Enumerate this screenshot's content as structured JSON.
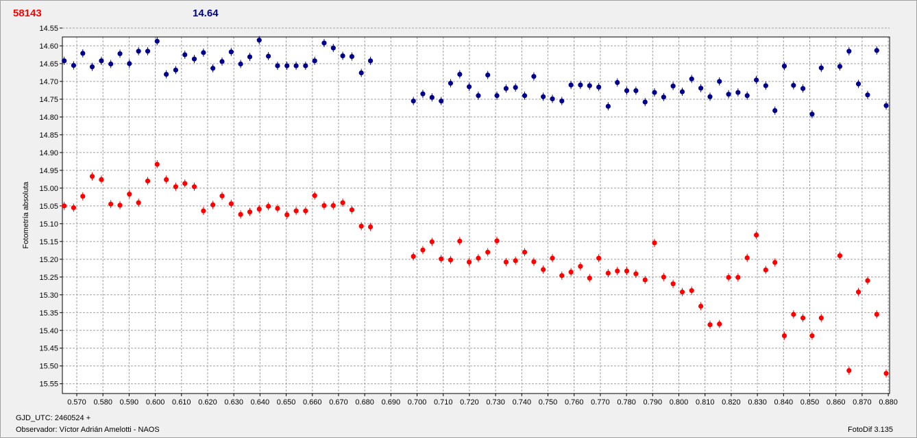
{
  "header": {
    "target_value": "58143",
    "target_color": "#ff0000",
    "compare_value": "14.64",
    "compare_color": "#00008b"
  },
  "footer": {
    "gjd_label": "GJD_UTC: 2460524 +",
    "observer_label": "Observador: Víctor Adrián Amelotti - NAOS",
    "software_label": "FotoDif 3.135"
  },
  "chart_data": {
    "type": "scatter",
    "ylabel": "Fotometría absoluta",
    "xlabel": "",
    "xlim": [
      0.5645,
      0.8805
    ],
    "ylim": [
      14.575,
      15.5775
    ],
    "y_inverted": true,
    "grid": true,
    "x_ticks": [
      0.57,
      0.58,
      0.59,
      0.6,
      0.61,
      0.62,
      0.63,
      0.64,
      0.65,
      0.66,
      0.67,
      0.68,
      0.69,
      0.7,
      0.71,
      0.72,
      0.73,
      0.74,
      0.75,
      0.76,
      0.77,
      0.78,
      0.79,
      0.8,
      0.81,
      0.82,
      0.83,
      0.84,
      0.85,
      0.86,
      0.87,
      0.88
    ],
    "y_ticks": [
      14.55,
      14.6,
      14.65,
      14.7,
      14.75,
      14.8,
      14.85,
      14.9,
      14.95,
      15.0,
      15.05,
      15.1,
      15.15,
      15.2,
      15.25,
      15.3,
      15.35,
      15.4,
      15.45,
      15.5,
      15.55
    ],
    "series": [
      {
        "color": "#00008b",
        "x": [
          0.5652,
          0.5688,
          0.5723,
          0.5759,
          0.5794,
          0.583,
          0.5865,
          0.5901,
          0.5936,
          0.5971,
          0.6007,
          0.6042,
          0.6078,
          0.6113,
          0.6149,
          0.6184,
          0.622,
          0.6255,
          0.629,
          0.6326,
          0.6361,
          0.6397,
          0.6432,
          0.6467,
          0.6503,
          0.6538,
          0.6574,
          0.6609,
          0.6645,
          0.668,
          0.6716,
          0.6751,
          0.6787,
          0.6822,
          0.6986,
          0.7022,
          0.7057,
          0.7092,
          0.7128,
          0.7163,
          0.7199,
          0.7234,
          0.727,
          0.7305,
          0.734,
          0.7376,
          0.7411,
          0.7446,
          0.7482,
          0.7517,
          0.7553,
          0.7588,
          0.7624,
          0.7659,
          0.7694,
          0.773,
          0.7765,
          0.7801,
          0.7836,
          0.7871,
          0.7907,
          0.7942,
          0.7978,
          0.8013,
          0.8049,
          0.8084,
          0.8119,
          0.8155,
          0.819,
          0.8226,
          0.8261,
          0.8296,
          0.8332,
          0.8367,
          0.8403,
          0.8438,
          0.8474,
          0.8509,
          0.8544,
          0.8615,
          0.865,
          0.8686,
          0.8721,
          0.8756,
          0.8792
        ],
        "y": [
          14.642,
          14.655,
          14.621,
          14.659,
          14.642,
          14.651,
          14.622,
          14.65,
          14.615,
          14.615,
          14.587,
          14.68,
          14.668,
          14.625,
          14.637,
          14.619,
          14.663,
          14.644,
          14.617,
          14.651,
          14.631,
          14.584,
          14.629,
          14.656,
          14.656,
          14.656,
          14.656,
          14.642,
          14.592,
          14.606,
          14.628,
          14.63,
          14.676,
          14.642,
          14.755,
          14.735,
          14.745,
          14.755,
          14.705,
          14.68,
          14.715,
          14.74,
          14.682,
          14.74,
          14.72,
          14.717,
          14.74,
          14.686,
          14.743,
          14.749,
          14.755,
          14.71,
          14.71,
          14.712,
          14.716,
          14.77,
          14.703,
          14.726,
          14.726,
          14.758,
          14.731,
          14.744,
          14.713,
          14.729,
          14.693,
          14.719,
          14.743,
          14.7,
          14.736,
          14.731,
          14.74,
          14.696,
          14.712,
          14.782,
          14.657,
          14.711,
          14.72,
          14.792,
          14.662,
          14.658,
          14.615,
          14.707,
          14.738,
          14.613,
          14.768
        ]
      },
      {
        "color": "#ff0000",
        "x": [
          0.5652,
          0.5688,
          0.5723,
          0.5759,
          0.5794,
          0.583,
          0.5865,
          0.5901,
          0.5936,
          0.5971,
          0.6007,
          0.6042,
          0.6078,
          0.6113,
          0.6149,
          0.6184,
          0.622,
          0.6255,
          0.629,
          0.6326,
          0.6361,
          0.6397,
          0.6432,
          0.6467,
          0.6503,
          0.6538,
          0.6574,
          0.6609,
          0.6645,
          0.668,
          0.6716,
          0.6751,
          0.6787,
          0.6822,
          0.6986,
          0.7022,
          0.7057,
          0.7092,
          0.7128,
          0.7163,
          0.7199,
          0.7234,
          0.727,
          0.7305,
          0.734,
          0.7376,
          0.7411,
          0.7446,
          0.7482,
          0.7517,
          0.7553,
          0.7588,
          0.7624,
          0.7659,
          0.7694,
          0.773,
          0.7765,
          0.7801,
          0.7836,
          0.7871,
          0.7907,
          0.7942,
          0.7978,
          0.8013,
          0.8049,
          0.8084,
          0.8119,
          0.8155,
          0.819,
          0.8226,
          0.8261,
          0.8296,
          0.8332,
          0.8367,
          0.8403,
          0.8438,
          0.8474,
          0.8509,
          0.8544,
          0.8615,
          0.865,
          0.8686,
          0.8721,
          0.8756,
          0.8792
        ],
        "y": [
          15.05,
          15.055,
          15.023,
          14.967,
          14.976,
          15.045,
          15.048,
          15.017,
          15.041,
          14.98,
          14.933,
          14.976,
          14.996,
          14.987,
          14.996,
          15.064,
          15.047,
          15.022,
          15.044,
          15.074,
          15.067,
          15.059,
          15.051,
          15.057,
          15.075,
          15.064,
          15.064,
          15.021,
          15.049,
          15.049,
          15.041,
          15.061,
          15.107,
          15.109,
          15.192,
          15.174,
          15.151,
          15.199,
          15.202,
          15.149,
          15.208,
          15.197,
          15.18,
          15.148,
          15.208,
          15.204,
          15.18,
          15.207,
          15.229,
          15.197,
          15.246,
          15.236,
          15.22,
          15.253,
          15.197,
          15.239,
          15.233,
          15.233,
          15.241,
          15.258,
          15.154,
          15.25,
          15.269,
          15.292,
          15.288,
          15.332,
          15.384,
          15.382,
          15.251,
          15.251,
          15.196,
          15.132,
          15.23,
          15.209,
          15.415,
          15.355,
          15.365,
          15.415,
          15.365,
          15.19,
          15.513,
          15.292,
          15.26,
          15.355,
          15.521
        ]
      }
    ]
  }
}
